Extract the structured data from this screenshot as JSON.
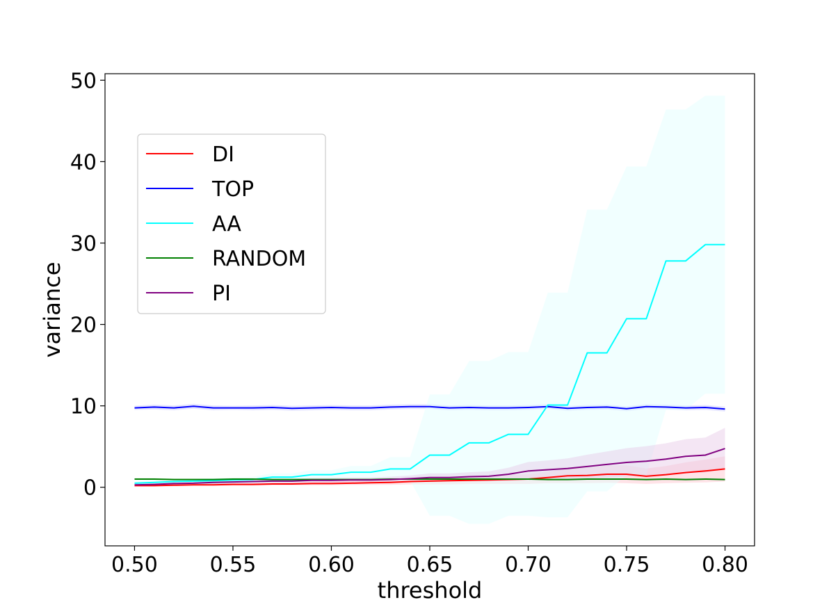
{
  "chart_data": {
    "type": "line",
    "title": "",
    "xlabel": "threshold",
    "ylabel": "variance",
    "xlim": [
      0.485,
      0.815
    ],
    "ylim": [
      -7.2,
      50.8
    ],
    "xticks": [
      0.5,
      0.55,
      0.6,
      0.65,
      0.7,
      0.75,
      0.8
    ],
    "xtick_labels": [
      "0.50",
      "0.55",
      "0.60",
      "0.65",
      "0.70",
      "0.75",
      "0.80"
    ],
    "yticks": [
      0,
      10,
      20,
      30,
      40,
      50
    ],
    "ytick_labels": [
      "0",
      "10",
      "20",
      "30",
      "40",
      "50"
    ],
    "grid": false,
    "legend_position": "upper-left",
    "x": [
      0.5,
      0.51,
      0.52,
      0.53,
      0.54,
      0.55,
      0.56,
      0.57,
      0.58,
      0.59,
      0.6,
      0.61,
      0.62,
      0.63,
      0.64,
      0.65,
      0.66,
      0.67,
      0.68,
      0.69,
      0.7,
      0.71,
      0.72,
      0.73,
      0.74,
      0.75,
      0.76,
      0.77,
      0.78,
      0.79,
      0.8
    ],
    "series": [
      {
        "name": "DI",
        "color": "#ff0000",
        "band_color": "#ffc0cb",
        "values": [
          0.2,
          0.2,
          0.25,
          0.3,
          0.3,
          0.35,
          0.35,
          0.4,
          0.4,
          0.45,
          0.45,
          0.5,
          0.55,
          0.6,
          0.7,
          0.75,
          0.8,
          0.85,
          0.9,
          0.95,
          1.0,
          1.2,
          1.4,
          1.45,
          1.6,
          1.6,
          1.35,
          1.55,
          1.8,
          2.0,
          2.25
        ],
        "lower": [
          0.1,
          0.1,
          0.15,
          0.2,
          0.2,
          0.2,
          0.2,
          0.25,
          0.25,
          0.25,
          0.25,
          0.3,
          0.3,
          0.3,
          0.35,
          0.35,
          0.35,
          0.4,
          0.4,
          0.4,
          0.4,
          0.5,
          0.5,
          0.5,
          0.55,
          0.5,
          0.4,
          0.5,
          0.55,
          0.6,
          0.7
        ],
        "upper": [
          0.3,
          0.3,
          0.35,
          0.4,
          0.45,
          0.5,
          0.5,
          0.55,
          0.6,
          0.65,
          0.7,
          0.75,
          0.8,
          0.9,
          1.05,
          1.15,
          1.25,
          1.3,
          1.4,
          1.5,
          1.6,
          1.9,
          2.3,
          2.4,
          2.65,
          2.7,
          2.3,
          2.6,
          3.05,
          3.4,
          3.8
        ]
      },
      {
        "name": "TOP",
        "color": "#0000ff",
        "band_color": "#c8c8ff",
        "values": [
          9.75,
          9.85,
          9.75,
          9.95,
          9.75,
          9.75,
          9.75,
          9.8,
          9.7,
          9.75,
          9.8,
          9.75,
          9.75,
          9.85,
          9.9,
          9.9,
          9.75,
          9.8,
          9.75,
          9.75,
          9.8,
          9.9,
          9.7,
          9.8,
          9.85,
          9.65,
          9.9,
          9.85,
          9.75,
          9.8,
          9.6
        ],
        "lower": [
          9.5,
          9.55,
          9.45,
          9.65,
          9.45,
          9.5,
          9.45,
          9.5,
          9.4,
          9.45,
          9.5,
          9.45,
          9.45,
          9.55,
          9.6,
          9.6,
          9.45,
          9.5,
          9.45,
          9.45,
          9.5,
          9.6,
          9.4,
          9.5,
          9.55,
          9.35,
          9.6,
          9.55,
          9.45,
          9.5,
          9.3
        ],
        "upper": [
          10.0,
          10.15,
          10.05,
          10.25,
          10.05,
          10.0,
          10.05,
          10.1,
          10.0,
          10.05,
          10.1,
          10.05,
          10.05,
          10.15,
          10.2,
          10.2,
          10.05,
          10.1,
          10.05,
          10.05,
          10.1,
          10.2,
          10.0,
          10.1,
          10.15,
          9.95,
          10.2,
          10.15,
          10.05,
          10.1,
          9.9
        ]
      },
      {
        "name": "AA",
        "color": "#00ffff",
        "band_color": "#e0ffff",
        "values": [
          0.5,
          0.6,
          0.7,
          0.75,
          0.8,
          0.9,
          0.95,
          1.25,
          1.25,
          1.55,
          1.55,
          1.85,
          1.85,
          2.25,
          2.25,
          3.95,
          3.95,
          5.45,
          5.45,
          6.5,
          6.5,
          10.1,
          10.1,
          16.5,
          16.5,
          20.7,
          20.7,
          27.8,
          27.8,
          29.8,
          29.8
        ],
        "lower": [
          0.3,
          0.4,
          0.5,
          0.5,
          0.5,
          0.6,
          0.6,
          0.8,
          0.8,
          1.0,
          1.0,
          1.1,
          1.1,
          0.8,
          0.8,
          -3.5,
          -3.5,
          -4.5,
          -4.5,
          -3.5,
          -3.5,
          -3.7,
          -3.7,
          -0.5,
          -0.5,
          1.5,
          1.5,
          9.5,
          9.5,
          11.5,
          11.5
        ],
        "upper": [
          0.7,
          0.8,
          0.9,
          1.0,
          1.1,
          1.2,
          1.3,
          1.7,
          1.7,
          2.1,
          2.1,
          2.6,
          2.6,
          3.7,
          3.7,
          11.4,
          11.4,
          15.5,
          15.5,
          16.6,
          16.6,
          23.9,
          23.9,
          34.1,
          34.1,
          39.4,
          39.4,
          46.4,
          46.4,
          48.1,
          48.1
        ]
      },
      {
        "name": "RANDOM",
        "color": "#008000",
        "band_color": "#c0e0c0",
        "values": [
          1.0,
          1.0,
          0.95,
          0.95,
          0.95,
          1.0,
          1.0,
          0.95,
          0.95,
          0.95,
          0.95,
          0.95,
          0.95,
          1.0,
          1.0,
          1.0,
          1.0,
          1.0,
          1.0,
          1.0,
          1.0,
          0.95,
          0.95,
          1.0,
          1.0,
          1.0,
          0.95,
          1.0,
          0.95,
          1.0,
          0.95
        ],
        "lower": [
          0.9,
          0.9,
          0.85,
          0.85,
          0.85,
          0.9,
          0.9,
          0.85,
          0.85,
          0.85,
          0.85,
          0.85,
          0.85,
          0.9,
          0.9,
          0.9,
          0.9,
          0.9,
          0.9,
          0.9,
          0.9,
          0.85,
          0.85,
          0.9,
          0.9,
          0.9,
          0.85,
          0.9,
          0.85,
          0.9,
          0.85
        ],
        "upper": [
          1.1,
          1.1,
          1.05,
          1.05,
          1.05,
          1.1,
          1.1,
          1.05,
          1.05,
          1.05,
          1.05,
          1.05,
          1.05,
          1.1,
          1.1,
          1.1,
          1.1,
          1.1,
          1.1,
          1.1,
          1.1,
          1.05,
          1.05,
          1.1,
          1.1,
          1.1,
          1.05,
          1.1,
          1.05,
          1.1,
          1.05
        ]
      },
      {
        "name": "PI",
        "color": "#800080",
        "band_color": "#e6c8e6",
        "values": [
          0.3,
          0.35,
          0.45,
          0.5,
          0.6,
          0.65,
          0.7,
          0.75,
          0.75,
          0.85,
          0.85,
          0.9,
          0.9,
          0.95,
          1.05,
          1.2,
          1.2,
          1.3,
          1.35,
          1.6,
          2.0,
          2.15,
          2.3,
          2.55,
          2.8,
          3.05,
          3.2,
          3.45,
          3.8,
          3.95,
          4.75
        ],
        "lower": [
          0.2,
          0.25,
          0.3,
          0.35,
          0.4,
          0.45,
          0.45,
          0.5,
          0.5,
          0.55,
          0.55,
          0.6,
          0.6,
          0.6,
          0.65,
          0.7,
          0.7,
          0.75,
          0.75,
          0.8,
          0.9,
          1.0,
          1.05,
          1.1,
          1.2,
          1.3,
          1.35,
          1.5,
          1.7,
          1.8,
          2.2
        ],
        "upper": [
          0.4,
          0.45,
          0.6,
          0.65,
          0.8,
          0.85,
          0.95,
          1.0,
          1.0,
          1.15,
          1.15,
          1.2,
          1.2,
          1.3,
          1.45,
          1.7,
          1.7,
          1.85,
          1.95,
          2.4,
          3.1,
          3.3,
          3.55,
          4.0,
          4.4,
          4.8,
          5.05,
          5.4,
          5.9,
          6.1,
          7.3
        ]
      }
    ]
  }
}
